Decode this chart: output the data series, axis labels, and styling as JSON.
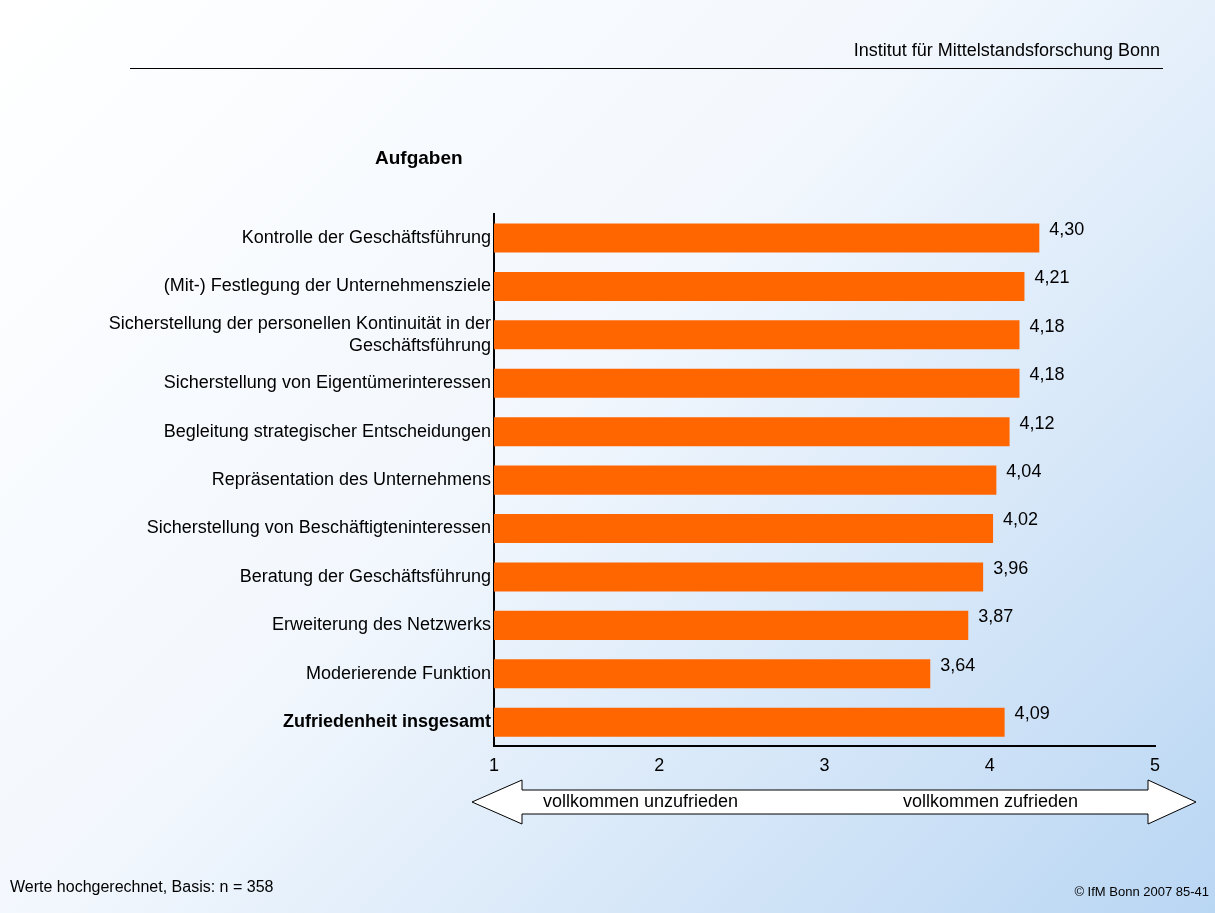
{
  "chart_data": {
    "type": "bar",
    "orientation": "horizontal",
    "title": "Aufgaben",
    "categories": [
      "Kontrolle der Geschäftsführung",
      "(Mit-) Festlegung der Unternehmensziele",
      "Sicherstellung der personellen Kontinuität in der Geschäftsführung",
      "Sicherstellung von Eigentümerinteressen",
      "Begleitung strategischer Entscheidungen",
      "Repräsentation des Unternehmens",
      "Sicherstellung von Beschäftigteninteressen",
      "Beratung der Geschäftsführung",
      "Erweiterung des Netzwerks",
      "Moderierende Funktion",
      "Zufriedenheit insgesamt"
    ],
    "values": [
      4.3,
      4.21,
      4.18,
      4.18,
      4.12,
      4.04,
      4.02,
      3.96,
      3.87,
      3.64,
      4.09
    ],
    "value_labels": [
      "4,30",
      "4,21",
      "4,18",
      "4,18",
      "4,12",
      "4,04",
      "4,02",
      "3,96",
      "3,87",
      "3,64",
      "4,09"
    ],
    "color": "#ff6600",
    "xlim": [
      1,
      5
    ],
    "xticks": [
      1,
      2,
      3,
      4,
      5
    ],
    "grid": false,
    "legend": false,
    "annotations": [
      "Institut für Mittelstandsforschung Bonn",
      "vollkommen unzufrieden",
      "vollkommen zufrieden",
      "Werte hochgerechnet, Basis: n = 358",
      "© IfM Bonn 2007  85-41"
    ]
  }
}
